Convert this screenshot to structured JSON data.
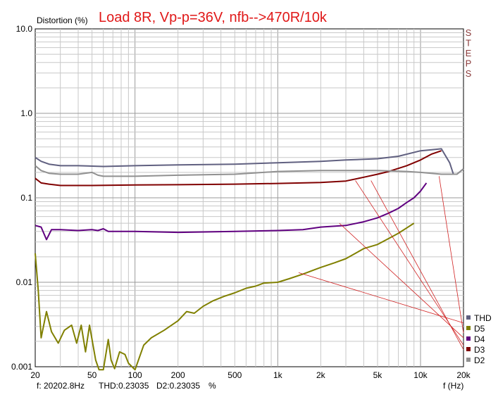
{
  "header": {
    "ylabel": "Distortion (%)",
    "title": "Load 8R, Vp-p=36V, nfb-->470R/10k",
    "side_label": "STEPS"
  },
  "footer": {
    "cursor_freq": "f: 20202.8Hz",
    "cursor_thd": "THD:0.23035",
    "cursor_d2": "D2:0.23035",
    "cursor_unit": "%",
    "xlabel": "f (Hz)"
  },
  "colors": {
    "THD": "#606080",
    "D5": "#808000",
    "D4": "#600080",
    "D3": "#800000",
    "D2": "#909090",
    "annotation": "#d02020"
  },
  "chart_data": {
    "type": "line",
    "title": "Load 8R, Vp-p=36V, nfb-->470R/10k",
    "xlabel": "f (Hz)",
    "ylabel": "Distortion (%)",
    "xscale": "log",
    "yscale": "log",
    "xlim": [
      20,
      20000
    ],
    "ylim": [
      0.001,
      10
    ],
    "grid": true,
    "legend_position": "bottom-right",
    "x_ticks": [
      {
        "value": 20,
        "label": "20"
      },
      {
        "value": 50,
        "label": "50"
      },
      {
        "value": 100,
        "label": "100"
      },
      {
        "value": 200,
        "label": "200"
      },
      {
        "value": 500,
        "label": "500"
      },
      {
        "value": 1000,
        "label": "1k"
      },
      {
        "value": 2000,
        "label": "2k"
      },
      {
        "value": 5000,
        "label": "5k"
      },
      {
        "value": 10000,
        "label": "10k"
      },
      {
        "value": 20000,
        "label": "20k"
      }
    ],
    "y_ticks": [
      {
        "value": 10,
        "label": "10.0"
      },
      {
        "value": 1,
        "label": "1.0"
      },
      {
        "value": 0.1,
        "label": "0.1"
      },
      {
        "value": 0.01,
        "label": "0.01"
      },
      {
        "value": 0.001,
        "label": "0.001"
      }
    ],
    "series": [
      {
        "name": "THD",
        "points": [
          [
            20,
            0.3
          ],
          [
            22,
            0.27
          ],
          [
            25,
            0.25
          ],
          [
            30,
            0.24
          ],
          [
            40,
            0.24
          ],
          [
            60,
            0.235
          ],
          [
            100,
            0.24
          ],
          [
            200,
            0.245
          ],
          [
            500,
            0.25
          ],
          [
            1000,
            0.26
          ],
          [
            2000,
            0.27
          ],
          [
            3000,
            0.28
          ],
          [
            5000,
            0.29
          ],
          [
            7000,
            0.31
          ],
          [
            10000,
            0.36
          ],
          [
            12000,
            0.37
          ],
          [
            14000,
            0.38
          ],
          [
            16000,
            0.26
          ],
          [
            17000,
            0.19
          ],
          [
            18000,
            0.19
          ],
          [
            20000,
            0.22
          ]
        ]
      },
      {
        "name": "D5",
        "points": [
          [
            20,
            0.022
          ],
          [
            21,
            0.008
          ],
          [
            22,
            0.0022
          ],
          [
            24,
            0.0045
          ],
          [
            26,
            0.0026
          ],
          [
            29,
            0.0019
          ],
          [
            32,
            0.0027
          ],
          [
            36,
            0.0031
          ],
          [
            39,
            0.0019
          ],
          [
            42,
            0.0031
          ],
          [
            45,
            0.0015
          ],
          [
            48,
            0.0031
          ],
          [
            53,
            0.0012
          ],
          [
            56,
            0.0008
          ],
          [
            60,
            0.0009
          ],
          [
            65,
            0.0021
          ],
          [
            68,
            0.0012
          ],
          [
            72,
            0.00095
          ],
          [
            78,
            0.0015
          ],
          [
            85,
            0.0014
          ],
          [
            90,
            0.0011
          ],
          [
            100,
            0.0009
          ],
          [
            115,
            0.0018
          ],
          [
            130,
            0.0022
          ],
          [
            160,
            0.0027
          ],
          [
            200,
            0.0035
          ],
          [
            230,
            0.0045
          ],
          [
            260,
            0.0043
          ],
          [
            300,
            0.0052
          ],
          [
            350,
            0.006
          ],
          [
            420,
            0.0068
          ],
          [
            500,
            0.0075
          ],
          [
            600,
            0.0085
          ],
          [
            700,
            0.009
          ],
          [
            800,
            0.0098
          ],
          [
            1000,
            0.01
          ],
          [
            1200,
            0.011
          ],
          [
            1500,
            0.0125
          ],
          [
            2000,
            0.015
          ],
          [
            2500,
            0.017
          ],
          [
            3000,
            0.019
          ],
          [
            3500,
            0.022
          ],
          [
            4000,
            0.025
          ],
          [
            5000,
            0.028
          ],
          [
            6000,
            0.033
          ],
          [
            7000,
            0.038
          ],
          [
            8000,
            0.044
          ],
          [
            9000,
            0.05
          ]
        ]
      },
      {
        "name": "D4",
        "points": [
          [
            20,
            0.047
          ],
          [
            22,
            0.045
          ],
          [
            24,
            0.032
          ],
          [
            26,
            0.042
          ],
          [
            30,
            0.042
          ],
          [
            40,
            0.041
          ],
          [
            50,
            0.042
          ],
          [
            55,
            0.041
          ],
          [
            60,
            0.043
          ],
          [
            65,
            0.04
          ],
          [
            100,
            0.04
          ],
          [
            200,
            0.039
          ],
          [
            500,
            0.04
          ],
          [
            1000,
            0.041
          ],
          [
            1500,
            0.042
          ],
          [
            2000,
            0.045
          ],
          [
            3000,
            0.047
          ],
          [
            4000,
            0.052
          ],
          [
            5000,
            0.058
          ],
          [
            6000,
            0.066
          ],
          [
            7000,
            0.075
          ],
          [
            8000,
            0.088
          ],
          [
            9000,
            0.1
          ],
          [
            10000,
            0.12
          ],
          [
            11000,
            0.15
          ]
        ]
      },
      {
        "name": "D3",
        "points": [
          [
            20,
            0.17
          ],
          [
            22,
            0.15
          ],
          [
            25,
            0.145
          ],
          [
            30,
            0.14
          ],
          [
            50,
            0.14
          ],
          [
            100,
            0.142
          ],
          [
            200,
            0.143
          ],
          [
            500,
            0.145
          ],
          [
            1000,
            0.148
          ],
          [
            2000,
            0.152
          ],
          [
            3000,
            0.158
          ],
          [
            4000,
            0.175
          ],
          [
            5000,
            0.19
          ],
          [
            6000,
            0.205
          ],
          [
            8000,
            0.24
          ],
          [
            10000,
            0.28
          ],
          [
            12000,
            0.33
          ],
          [
            14000,
            0.36
          ]
        ]
      },
      {
        "name": "D2",
        "points": [
          [
            20,
            0.24
          ],
          [
            22,
            0.21
          ],
          [
            25,
            0.195
          ],
          [
            30,
            0.19
          ],
          [
            40,
            0.19
          ],
          [
            50,
            0.2
          ],
          [
            55,
            0.185
          ],
          [
            60,
            0.18
          ],
          [
            100,
            0.18
          ],
          [
            200,
            0.185
          ],
          [
            500,
            0.19
          ],
          [
            1000,
            0.205
          ],
          [
            2000,
            0.21
          ],
          [
            5000,
            0.21
          ],
          [
            8000,
            0.205
          ],
          [
            10000,
            0.2
          ],
          [
            14000,
            0.19
          ],
          [
            17000,
            0.19
          ],
          [
            18000,
            0.19
          ],
          [
            20000,
            0.22
          ]
        ]
      }
    ],
    "annotation_lines": [
      [
        [
          1400,
          0.013
        ],
        [
          20000,
          0.0033
        ]
      ],
      [
        [
          2700,
          0.05
        ],
        [
          20000,
          0.0022
        ]
      ],
      [
        [
          3500,
          0.16
        ],
        [
          20000,
          0.0018
        ]
      ],
      [
        [
          4500,
          0.16
        ],
        [
          20000,
          0.0016
        ]
      ],
      [
        [
          13500,
          0.18
        ],
        [
          20000,
          0.0025
        ]
      ]
    ],
    "legend": [
      {
        "name": "THD",
        "color": "#606080"
      },
      {
        "name": "D5",
        "color": "#808000"
      },
      {
        "name": "D4",
        "color": "#600080"
      },
      {
        "name": "D3",
        "color": "#800000"
      },
      {
        "name": "D2",
        "color": "#909090"
      }
    ]
  }
}
